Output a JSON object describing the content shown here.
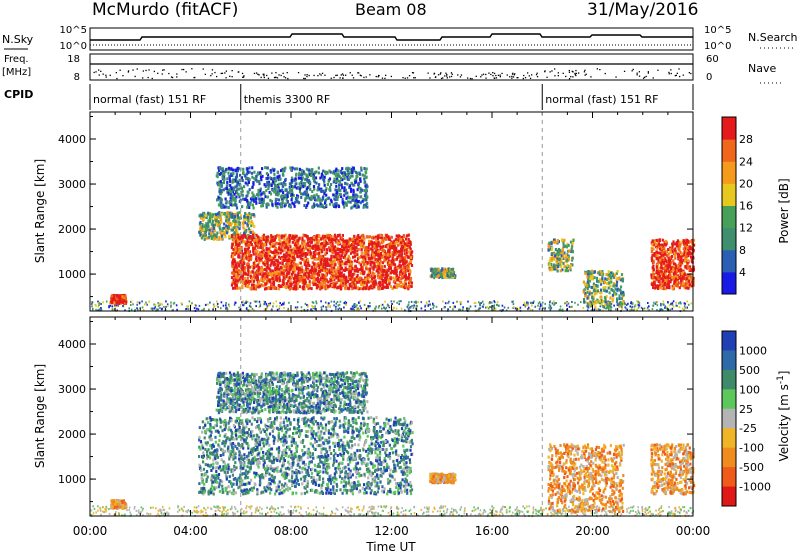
{
  "header": {
    "station": "McMurdo (fitACF)",
    "beam": "Beam 08",
    "date": "31/May/2016"
  },
  "status_panels": {
    "nsky_label": "N.Sky",
    "nsky_ticks": [
      "10^5",
      "10^0"
    ],
    "nsearch_label": "N.Search",
    "nsearch_ticks": [
      "10^5",
      "10^0"
    ],
    "freq_label_1": "Freq.",
    "freq_label_2": "[MHz]",
    "freq_ticks": [
      "18",
      "8"
    ],
    "nave_label": "Nave",
    "nave_ticks": [
      "60",
      "0"
    ],
    "cpid_label": "CPID",
    "modes": [
      {
        "label": "normal (fast) 151 RF",
        "start_h": 0,
        "end_h": 6
      },
      {
        "label": "themis 3300 RF",
        "start_h": 6,
        "end_h": 18
      },
      {
        "label": "normal (fast) 151 RF",
        "start_h": 18,
        "end_h": 24
      }
    ]
  },
  "chart_data": [
    {
      "type": "heatmap",
      "name": "power",
      "ylabel": "Slant Range [km]",
      "xlim": [
        0,
        24
      ],
      "ylim": [
        180,
        4600
      ],
      "yticks": [
        1000,
        2000,
        3000,
        4000
      ],
      "ytick_labels": [
        "1000",
        "2000",
        "3000",
        "4000"
      ],
      "colorbar": {
        "label": "Power [dB]",
        "ticks": [
          "4",
          "8",
          "12",
          "16",
          "20",
          "24",
          "28"
        ],
        "colors": [
          "#1a1ae6",
          "#2a5fb4",
          "#3f8f6f",
          "#46a05a",
          "#e6c81e",
          "#f59a1a",
          "#f0661a",
          "#e41a1c"
        ]
      },
      "regions": [
        {
          "t0": 0.8,
          "t1": 1.4,
          "r0": 380,
          "r1": 560,
          "value": "high"
        },
        {
          "t0": 4.3,
          "t1": 6.5,
          "r0": 1800,
          "r1": 2400,
          "value": "mid"
        },
        {
          "t0": 5.6,
          "t1": 12.8,
          "r0": 700,
          "r1": 1900,
          "value": "high"
        },
        {
          "t0": 5.0,
          "t1": 11.0,
          "r0": 2500,
          "r1": 3400,
          "value": "low"
        },
        {
          "t0": 13.5,
          "t1": 14.5,
          "r0": 950,
          "r1": 1150,
          "value": "mid"
        },
        {
          "t0": 18.2,
          "t1": 19.2,
          "r0": 1100,
          "r1": 1800,
          "value": "mid"
        },
        {
          "t0": 19.6,
          "t1": 21.2,
          "r0": 300,
          "r1": 1100,
          "value": "mid"
        },
        {
          "t0": 22.3,
          "t1": 24.0,
          "r0": 700,
          "r1": 1800,
          "value": "high"
        }
      ]
    },
    {
      "type": "heatmap",
      "name": "velocity",
      "ylabel": "Slant Range [km]",
      "xlabel": "Time UT",
      "xlim": [
        0,
        24
      ],
      "ylim": [
        180,
        4600
      ],
      "xticks": [
        0,
        4,
        8,
        12,
        16,
        20,
        24
      ],
      "xtick_labels": [
        "00:00",
        "04:00",
        "08:00",
        "12:00",
        "16:00",
        "20:00",
        "00:00"
      ],
      "yticks": [
        1000,
        2000,
        3000,
        4000
      ],
      "ytick_labels": [
        "1000",
        "2000",
        "3000",
        "4000"
      ],
      "colorbar": {
        "label": "Velocity [m s^-1]",
        "ticks": [
          "1000",
          "500",
          "100",
          "25",
          "-25",
          "-100",
          "-500",
          "-1000"
        ],
        "colors": [
          "#1f3fb4",
          "#2f6aa8",
          "#3f8a6a",
          "#5cc85c",
          "#b4b4b4",
          "#f0b428",
          "#f08c1e",
          "#f05a1a",
          "#e01818"
        ]
      },
      "regions": [
        {
          "t0": 0.8,
          "t1": 1.4,
          "r0": 380,
          "r1": 560,
          "value": "toward"
        },
        {
          "t0": 4.3,
          "t1": 12.8,
          "r0": 700,
          "r1": 2400,
          "value": "away"
        },
        {
          "t0": 5.0,
          "t1": 11.0,
          "r0": 2500,
          "r1": 3400,
          "value": "away"
        },
        {
          "t0": 13.5,
          "t1": 14.5,
          "r0": 950,
          "r1": 1150,
          "value": "toward"
        },
        {
          "t0": 18.2,
          "t1": 21.2,
          "r0": 300,
          "r1": 1800,
          "value": "toward"
        },
        {
          "t0": 22.3,
          "t1": 24.0,
          "r0": 700,
          "r1": 1800,
          "value": "toward"
        }
      ]
    }
  ]
}
